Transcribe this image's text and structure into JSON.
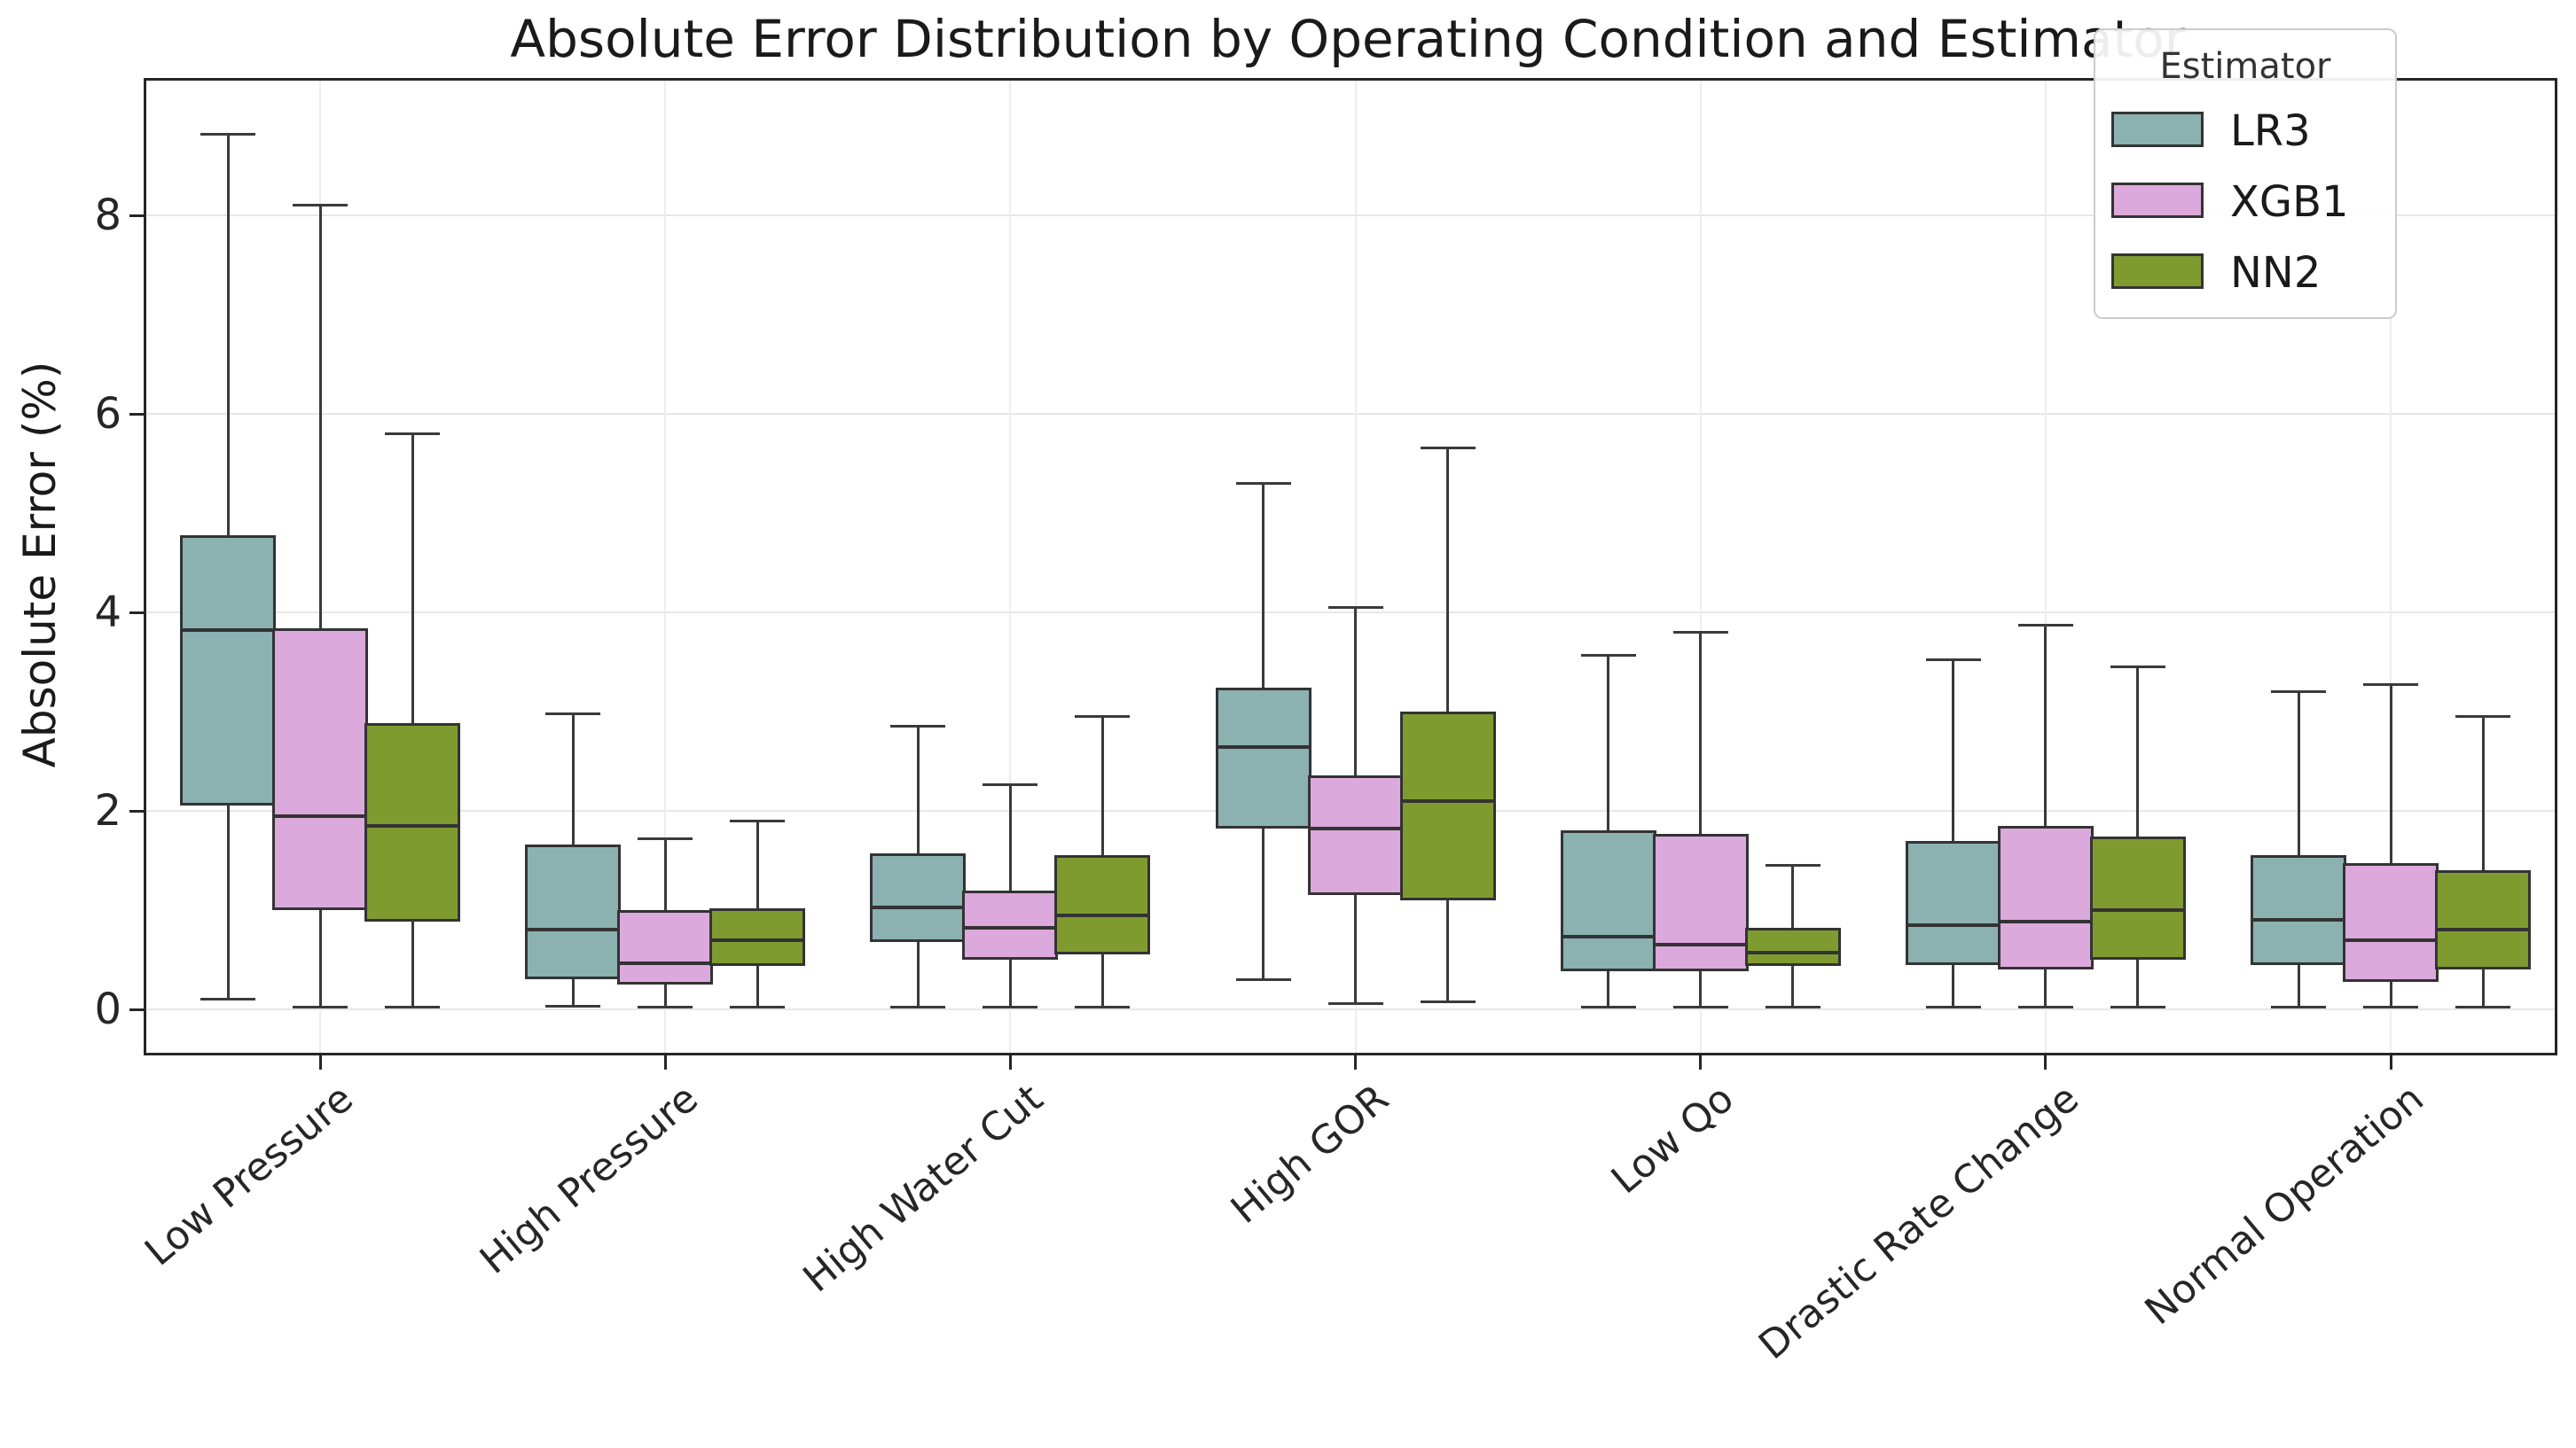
{
  "figure": {
    "title": "Absolute Error Distribution by Operating Condition and Estimator",
    "ylabel": "Absolute Error (%)",
    "legend": {
      "title": "Estimator",
      "entries": [
        {
          "label": "LR3",
          "color": "#8BB1B1"
        },
        {
          "label": "XGB1",
          "color": "#DCA9DC"
        },
        {
          "label": "NN2",
          "color": "#7F9B30"
        }
      ]
    }
  },
  "chart_data": {
    "type": "boxplot",
    "title": "Absolute Error Distribution by Operating Condition and Estimator",
    "xlabel": "",
    "ylabel": "Absolute Error (%)",
    "ylim": [
      -0.45,
      9.35
    ],
    "yticks": [
      0,
      2,
      4,
      6,
      8
    ],
    "grid": true,
    "legend_position": "upper right",
    "legend_title": "Estimator",
    "categories": [
      "Low Pressure",
      "High Pressure",
      "High Water Cut",
      "High GOR",
      "Low Qo",
      "Drastic Rate Change",
      "Normal Operation"
    ],
    "series": [
      {
        "name": "LR3",
        "color": "#8BB1B1",
        "boxes": [
          {
            "whislo": 0.1,
            "q1": 2.05,
            "med": 3.82,
            "q3": 4.78,
            "whishi": 8.82
          },
          {
            "whislo": 0.03,
            "q1": 0.3,
            "med": 0.8,
            "q3": 1.66,
            "whishi": 2.98
          },
          {
            "whislo": 0.02,
            "q1": 0.68,
            "med": 1.03,
            "q3": 1.57,
            "whishi": 2.85
          },
          {
            "whislo": 0.3,
            "q1": 1.82,
            "med": 2.64,
            "q3": 3.24,
            "whishi": 5.3
          },
          {
            "whislo": 0.02,
            "q1": 0.38,
            "med": 0.73,
            "q3": 1.8,
            "whishi": 3.57
          },
          {
            "whislo": 0.02,
            "q1": 0.45,
            "med": 0.85,
            "q3": 1.7,
            "whishi": 3.52
          },
          {
            "whislo": 0.02,
            "q1": 0.45,
            "med": 0.9,
            "q3": 1.55,
            "whishi": 3.2
          }
        ]
      },
      {
        "name": "XGB1",
        "color": "#DCA9DC",
        "boxes": [
          {
            "whislo": 0.02,
            "q1": 1.0,
            "med": 1.95,
            "q3": 3.84,
            "whishi": 8.1
          },
          {
            "whislo": 0.02,
            "q1": 0.25,
            "med": 0.46,
            "q3": 1.0,
            "whishi": 1.72
          },
          {
            "whislo": 0.02,
            "q1": 0.5,
            "med": 0.82,
            "q3": 1.2,
            "whishi": 2.26
          },
          {
            "whislo": 0.06,
            "q1": 1.15,
            "med": 1.82,
            "q3": 2.36,
            "whishi": 4.05
          },
          {
            "whislo": 0.02,
            "q1": 0.38,
            "med": 0.65,
            "q3": 1.77,
            "whishi": 3.8
          },
          {
            "whislo": 0.02,
            "q1": 0.4,
            "med": 0.88,
            "q3": 1.85,
            "whishi": 3.87
          },
          {
            "whislo": 0.02,
            "q1": 0.28,
            "med": 0.7,
            "q3": 1.47,
            "whishi": 3.27
          }
        ]
      },
      {
        "name": "NN2",
        "color": "#7F9B30",
        "boxes": [
          {
            "whislo": 0.02,
            "q1": 0.88,
            "med": 1.85,
            "q3": 2.88,
            "whishi": 5.8
          },
          {
            "whislo": 0.02,
            "q1": 0.44,
            "med": 0.7,
            "q3": 1.02,
            "whishi": 1.9
          },
          {
            "whislo": 0.02,
            "q1": 0.55,
            "med": 0.95,
            "q3": 1.55,
            "whishi": 2.95
          },
          {
            "whislo": 0.08,
            "q1": 1.1,
            "med": 2.1,
            "q3": 3.0,
            "whishi": 5.66
          },
          {
            "whislo": 0.02,
            "q1": 0.44,
            "med": 0.57,
            "q3": 0.82,
            "whishi": 1.45
          },
          {
            "whislo": 0.02,
            "q1": 0.5,
            "med": 1.0,
            "q3": 1.74,
            "whishi": 3.45
          },
          {
            "whislo": 0.02,
            "q1": 0.4,
            "med": 0.8,
            "q3": 1.4,
            "whishi": 2.95
          }
        ]
      }
    ]
  }
}
